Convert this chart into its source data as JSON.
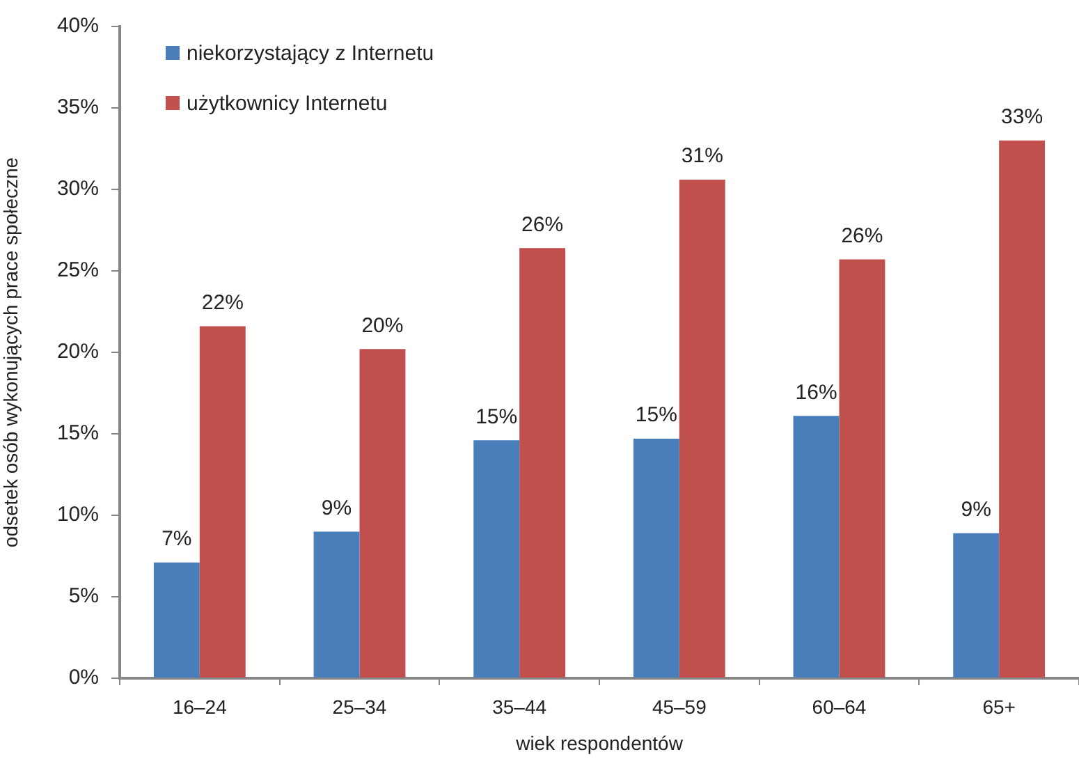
{
  "chart_data": {
    "type": "bar",
    "xlabel": "wiek respondentów",
    "ylabel": "odsetek osób wykonujących prace społeczne",
    "categories": [
      "16–24",
      "25–34",
      "35–44",
      "45–59",
      "60–64",
      "65+"
    ],
    "series": [
      {
        "name": "niekorzystający z Internetu",
        "color": "#4a7ebb",
        "values": [
          7.1,
          9.0,
          14.6,
          14.7,
          16.1,
          8.9
        ],
        "value_labels": [
          "7%",
          "9%",
          "15%",
          "15%",
          "16%",
          "9%"
        ]
      },
      {
        "name": "użytkownicy Internetu",
        "color": "#c0504d",
        "values": [
          21.6,
          20.2,
          26.4,
          30.6,
          25.7,
          33.0
        ],
        "value_labels": [
          "22%",
          "20%",
          "26%",
          "31%",
          "26%",
          "33%"
        ]
      }
    ],
    "ylim": [
      0,
      40
    ],
    "yticks": [
      {
        "value": 0,
        "label": "0%"
      },
      {
        "value": 5,
        "label": "5%"
      },
      {
        "value": 10,
        "label": "10%"
      },
      {
        "value": 15,
        "label": "15%"
      },
      {
        "value": 20,
        "label": "20%"
      },
      {
        "value": 25,
        "label": "25%"
      },
      {
        "value": 30,
        "label": "30%"
      },
      {
        "value": 35,
        "label": "35%"
      },
      {
        "value": 40,
        "label": "40%"
      }
    ],
    "legend": "top left",
    "grid": false
  }
}
